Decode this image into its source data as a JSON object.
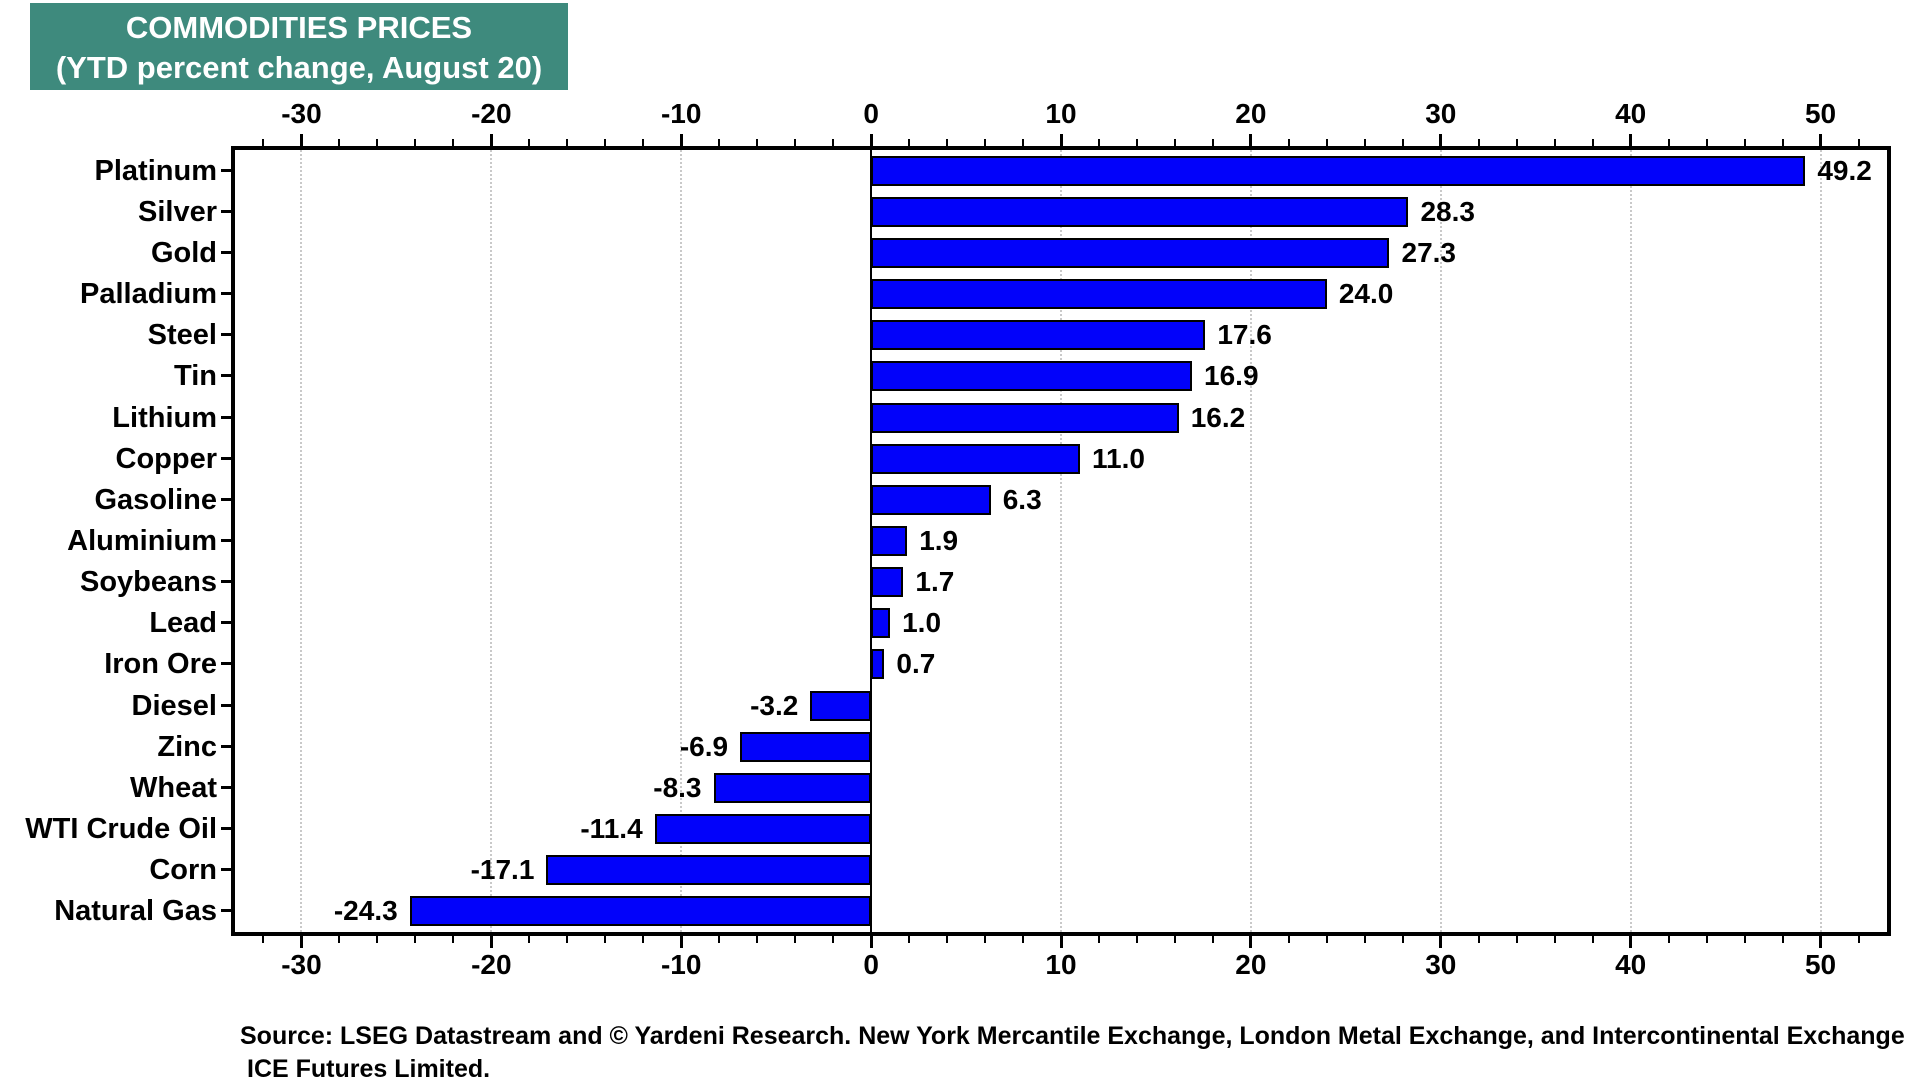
{
  "title": {
    "line1": "COMMODITIES PRICES",
    "line2": "(YTD percent change, August 20)"
  },
  "source": {
    "line1": "Source: LSEG Datastream and © Yardeni Research. New York Mercantile Exchange, London Metal Exchange, and Intercontinental Exchange",
    "line2": "ICE Futures Limited."
  },
  "colors": {
    "title_bg": "#3E8A7D",
    "title_text": "#FFFFFF",
    "bar_fill": "#0202FA",
    "bar_edge": "#000000",
    "grid_line": "#C9C9C9",
    "axis": "#000000",
    "text": "#000000",
    "background": "#FFFFFF"
  },
  "chart_data": {
    "type": "bar",
    "orientation": "horizontal",
    "title": "COMMODITIES PRICES (YTD percent change, August 20)",
    "categories": [
      "Platinum",
      "Silver",
      "Gold",
      "Palladium",
      "Steel",
      "Tin",
      "Lithium",
      "Copper",
      "Gasoline",
      "Aluminium",
      "Soybeans",
      "Lead",
      "Iron Ore",
      "Diesel",
      "Zinc",
      "Wheat",
      "WTI Crude Oil",
      "Corn",
      "Natural Gas"
    ],
    "values": [
      49.2,
      28.3,
      27.3,
      24.0,
      17.6,
      16.9,
      16.2,
      11.0,
      6.3,
      1.9,
      1.7,
      1.0,
      0.7,
      -3.2,
      -6.9,
      -8.3,
      -11.4,
      -17.1,
      -24.3
    ],
    "value_labels": [
      "49.2",
      "28.3",
      "27.3",
      "24.0",
      "17.6",
      "16.9",
      "16.2",
      "11.0",
      "6.3",
      "1.9",
      "1.7",
      "1.0",
      "0.7",
      "-3.2",
      "-6.9",
      "-8.3",
      "-11.4",
      "-17.1",
      "-24.3"
    ],
    "xlabel": "",
    "ylabel": "",
    "xlim": [
      -33.5,
      53.5
    ],
    "x_major_ticks": [
      -30,
      -20,
      -10,
      0,
      10,
      20,
      30,
      40,
      50
    ],
    "x_minor_tick_step": 2,
    "grid": "vertical dotted lines at major ticks, solid black line at zero",
    "axis_positions": "tick labels on top and bottom",
    "legend": "none"
  }
}
